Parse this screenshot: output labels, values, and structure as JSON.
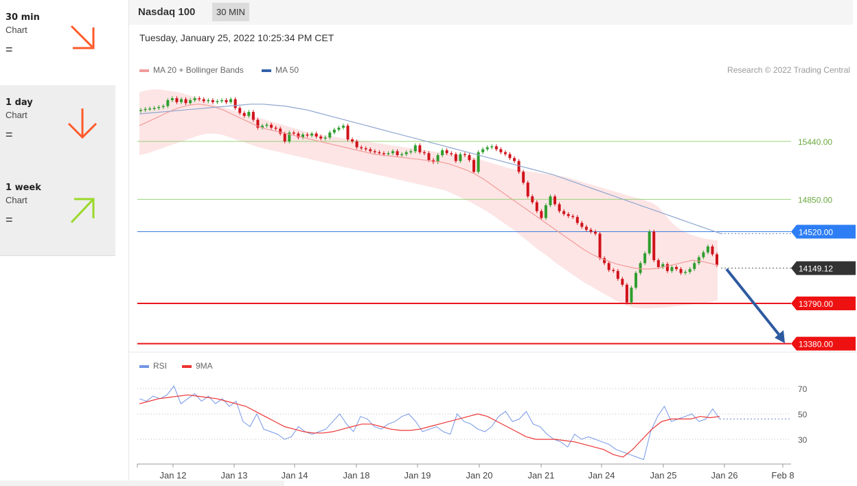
{
  "sidebar": {
    "items": [
      {
        "name": "30 min",
        "sub": "Chart",
        "status": "=",
        "arrow": "down-right-arrow-icon",
        "color": "#ff5a2a"
      },
      {
        "name": "1 day",
        "sub": "Chart",
        "status": "=",
        "arrow": "down-arrow-icon",
        "color": "#ff5a2a"
      },
      {
        "name": "1 week",
        "sub": "Chart",
        "status": "=",
        "arrow": "up-right-arrow-icon",
        "color": "#9ad82a"
      }
    ]
  },
  "header": {
    "title": "Nasdaq 100",
    "badge": "30 MIN"
  },
  "datetime": "Tuesday, January 25, 2022 10:25:34 PM CET",
  "legend": {
    "ma20": "MA 20 + Bollinger Bands",
    "ma50": "MA 50",
    "credit": "Research © 2022 Trading Central"
  },
  "rsi_legend": {
    "rsi": "RSI",
    "ma": "9MA"
  },
  "colors": {
    "up": "#2e9e2e",
    "down": "#d0121b",
    "ma20": "#f29a9a",
    "band": "#fde0e0",
    "ma50": "#8ea6cf",
    "rsi": "#7396e6",
    "rsi_ma": "#ee3333",
    "support": "#e8151b",
    "resistance_green": "#98d07a",
    "pivot": "#3b7ddd",
    "forecast_arrow": "#2d5aa0"
  },
  "chart_data": {
    "type": "candlestick",
    "instrument": "Nasdaq 100",
    "timeframe": "30 MIN",
    "x_labels": [
      "Jan 12",
      "Jan 13",
      "Jan 14",
      "Jan 18",
      "Jan 19",
      "Jan 20",
      "Jan 21",
      "Jan 24",
      "Jan 25",
      "Jan 26",
      "Feb 8"
    ],
    "levels": [
      {
        "value": 15440.0,
        "label": "15440.00",
        "kind": "resistance"
      },
      {
        "value": 14850.0,
        "label": "14850.00",
        "kind": "resistance"
      },
      {
        "value": 14520.0,
        "label": "14520.00",
        "kind": "pivot"
      },
      {
        "value": 14149.12,
        "label": "14149.12",
        "kind": "last"
      },
      {
        "value": 13790.0,
        "label": "13790.00",
        "kind": "support"
      },
      {
        "value": 13380.0,
        "label": "13380.00",
        "kind": "support"
      }
    ],
    "forecast": {
      "direction": "down",
      "target": 13380.0
    },
    "closes": [
      15760,
      15770,
      15775,
      15780,
      15790,
      15800,
      15860,
      15880,
      15840,
      15870,
      15830,
      15860,
      15880,
      15870,
      15850,
      15860,
      15840,
      15850,
      15860,
      15840,
      15870,
      15780,
      15730,
      15700,
      15740,
      15660,
      15580,
      15600,
      15610,
      15580,
      15570,
      15520,
      15440,
      15530,
      15520,
      15480,
      15510,
      15500,
      15520,
      15490,
      15470,
      15480,
      15530,
      15560,
      15580,
      15600,
      15460,
      15440,
      15380,
      15370,
      15360,
      15340,
      15330,
      15320,
      15310,
      15320,
      15340,
      15300,
      15310,
      15330,
      15340,
      15400,
      15330,
      15320,
      15250,
      15230,
      15300,
      15350,
      15320,
      15310,
      15240,
      15310,
      15300,
      15250,
      15130,
      15330,
      15360,
      15380,
      15390,
      15360,
      15330,
      15310,
      15270,
      15240,
      15130,
      15020,
      14880,
      14820,
      14730,
      14660,
      14790,
      14880,
      14800,
      14730,
      14700,
      14680,
      14670,
      14610,
      14570,
      14540,
      14520,
      14500,
      14250,
      14200,
      14130,
      14120,
      14040,
      13980,
      13800,
      13950,
      14100,
      14200,
      14300,
      14520,
      14230,
      14160,
      14190,
      14120,
      14160,
      14140,
      14100,
      14110,
      14140,
      14200,
      14260,
      14310,
      14370,
      14290,
      14180
    ],
    "bb_upper": [
      15940,
      15960,
      15970,
      15970,
      15960,
      15950,
      15940,
      15920,
      15900,
      15870,
      15850,
      15820,
      15800,
      15780,
      15760,
      15740,
      15720,
      15700,
      15680,
      15660,
      15640,
      15620,
      15600,
      15580,
      15560,
      15540,
      15520,
      15510,
      15500,
      15490,
      15480,
      15470,
      15460,
      15450,
      15440,
      15430,
      15420,
      15410,
      15400,
      15390,
      15380,
      15370,
      15360,
      15350,
      15340,
      15330,
      15320,
      15310,
      15300,
      15290,
      15280,
      15260,
      15240,
      15220,
      15200,
      15180,
      15160,
      15150,
      15140,
      15130,
      15120,
      15110,
      15100,
      15090,
      15080,
      15060,
      15040,
      15020,
      15000,
      14980,
      14960,
      14940,
      14920,
      14900,
      14880,
      14860,
      14840,
      14820,
      14780,
      14700,
      14620,
      14560,
      14520,
      14490,
      14470,
      14450,
      14440,
      14430
    ],
    "bb_lower": [
      15300,
      15320,
      15350,
      15380,
      15410,
      15440,
      15470,
      15500,
      15520,
      15520,
      15500,
      15470,
      15440,
      15410,
      15380,
      15360,
      15340,
      15320,
      15300,
      15280,
      15260,
      15240,
      15220,
      15200,
      15180,
      15160,
      15140,
      15120,
      15100,
      15080,
      15060,
      15040,
      15020,
      15000,
      14980,
      14960,
      14940,
      14900,
      14860,
      14820,
      14770,
      14720,
      14660,
      14600,
      14540,
      14470,
      14400,
      14330,
      14270,
      14200,
      14140,
      14080,
      14020,
      13970,
      13920,
      13870,
      13820,
      13780,
      13750,
      13740,
      13740,
      13745,
      13750,
      13760,
      13770,
      13780,
      13790,
      13800,
      13820
    ],
    "ma20": [
      15600,
      15640,
      15680,
      15720,
      15760,
      15790,
      15810,
      15820,
      15810,
      15790,
      15760,
      15720,
      15680,
      15640,
      15600,
      15570,
      15550,
      15530,
      15510,
      15490,
      15470,
      15450,
      15430,
      15410,
      15390,
      15370,
      15350,
      15330,
      15310,
      15300,
      15290,
      15280,
      15270,
      15260,
      15250,
      15240,
      15230,
      15210,
      15180,
      15150,
      15110,
      15060,
      15000,
      14940,
      14880,
      14820,
      14760,
      14700,
      14640,
      14580,
      14520,
      14460,
      14400,
      14340,
      14290,
      14250,
      14220,
      14190,
      14170,
      14150,
      14140,
      14140,
      14150,
      14170,
      14190,
      14210,
      14230,
      14220,
      14200,
      14180
    ],
    "ma50": [
      15720,
      15730,
      15740,
      15750,
      15760,
      15770,
      15780,
      15790,
      15800,
      15810,
      15820,
      15820,
      15810,
      15800,
      15780,
      15760,
      15730,
      15700,
      15670,
      15640,
      15610,
      15580,
      15550,
      15520,
      15490,
      15460,
      15430,
      15400,
      15370,
      15340,
      15310,
      15280,
      15250,
      15220,
      15190,
      15160,
      15130,
      15100,
      15060,
      15020,
      14980,
      14940,
      14900,
      14860,
      14820,
      14780,
      14740,
      14700,
      14660,
      14620,
      14580,
      14540,
      14500
    ],
    "rsi": {
      "ticks": [
        70,
        50,
        30
      ],
      "rsi_values": [
        62,
        60,
        64,
        62,
        65,
        72,
        58,
        62,
        66,
        60,
        64,
        58,
        62,
        56,
        60,
        44,
        40,
        50,
        38,
        36,
        34,
        30,
        32,
        40,
        36,
        34,
        36,
        38,
        44,
        50,
        42,
        36,
        48,
        46,
        40,
        38,
        42,
        44,
        48,
        50,
        44,
        36,
        38,
        40,
        36,
        34,
        50,
        44,
        42,
        38,
        36,
        40,
        48,
        52,
        44,
        46,
        52,
        42,
        40,
        34,
        30,
        28,
        24,
        34,
        30,
        32,
        30,
        28,
        26,
        22,
        20,
        18,
        16,
        14,
        36,
        48,
        56,
        44,
        46,
        48,
        50,
        44,
        46,
        54,
        46
      ],
      "ma_values": [
        58,
        60,
        62,
        63,
        64,
        65,
        64,
        63,
        62,
        60,
        58,
        56,
        52,
        48,
        44,
        40,
        38,
        36,
        35,
        35,
        36,
        38,
        40,
        42,
        42,
        40,
        38,
        37,
        37,
        38,
        40,
        42,
        44,
        46,
        48,
        50,
        48,
        44,
        40,
        36,
        32,
        30,
        30,
        30,
        29,
        28,
        26,
        24,
        22,
        18,
        16,
        22,
        30,
        38,
        44,
        46,
        46,
        46,
        48,
        47,
        48
      ]
    }
  }
}
